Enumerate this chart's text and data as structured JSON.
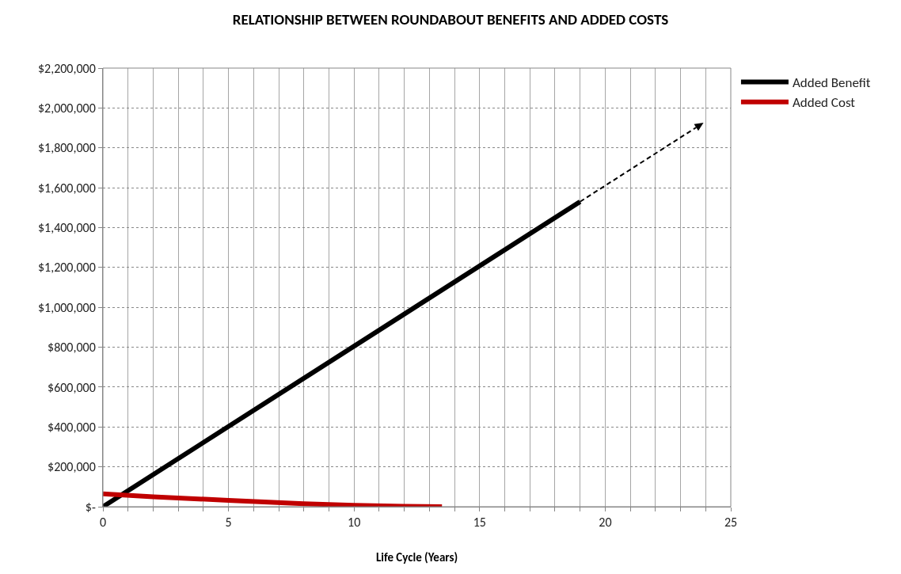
{
  "chart_data": {
    "type": "line",
    "title": "RELATIONSHIP BETWEEN ROUNDABOUT BENEFITS AND ADDED COSTS",
    "xlabel": "Life Cycle (Years)",
    "xlim": [
      0,
      25
    ],
    "xticks": [
      0,
      {
        "value": 1,
        "label": null
      },
      {
        "value": 2,
        "label": null
      },
      {
        "value": 3,
        "label": null
      },
      {
        "value": 4,
        "label": null
      },
      5,
      {
        "value": 6,
        "label": null
      },
      {
        "value": 7,
        "label": null
      },
      {
        "value": 8,
        "label": null
      },
      {
        "value": 9,
        "label": null
      },
      10,
      {
        "value": 11,
        "label": null
      },
      {
        "value": 12,
        "label": null
      },
      {
        "value": 13,
        "label": null
      },
      {
        "value": 14,
        "label": null
      },
      15,
      {
        "value": 16,
        "label": null
      },
      {
        "value": 17,
        "label": null
      },
      {
        "value": 18,
        "label": null
      },
      {
        "value": 19,
        "label": null
      },
      20,
      {
        "value": 21,
        "label": null
      },
      {
        "value": 22,
        "label": null
      },
      {
        "value": 23,
        "label": null
      },
      {
        "value": 24,
        "label": null
      },
      25
    ],
    "ylim": [
      0,
      2200000
    ],
    "yticks": [
      {
        "value": 0,
        "label": "$-"
      },
      {
        "value": 200000,
        "label": "$200,000"
      },
      {
        "value": 400000,
        "label": "$400,000"
      },
      {
        "value": 600000,
        "label": "$600,000"
      },
      {
        "value": 800000,
        "label": "$800,000"
      },
      {
        "value": 1000000,
        "label": "$1,000,000"
      },
      {
        "value": 1200000,
        "label": "$1,200,000"
      },
      {
        "value": 1400000,
        "label": "$1,400,000"
      },
      {
        "value": 1600000,
        "label": "$1,600,000"
      },
      {
        "value": 1800000,
        "label": "$1,800,000"
      },
      {
        "value": 2000000,
        "label": "$2,000,000"
      },
      {
        "value": 2200000,
        "label": "$2,200,000"
      }
    ],
    "grid": true,
    "legend": "top right",
    "marker": "none",
    "line_style": "solid",
    "series": [
      {
        "name": "Added Benefit",
        "color": "#000000",
        "x": [
          0,
          19
        ],
        "values": [
          0,
          1530000
        ]
      },
      {
        "name": "Added Cost",
        "color": "#c00000",
        "x": [
          0,
          2,
          5,
          8,
          10,
          12,
          13.5
        ],
        "values": [
          65000,
          50000,
          32000,
          15000,
          7000,
          2000,
          0
        ]
      }
    ]
  }
}
